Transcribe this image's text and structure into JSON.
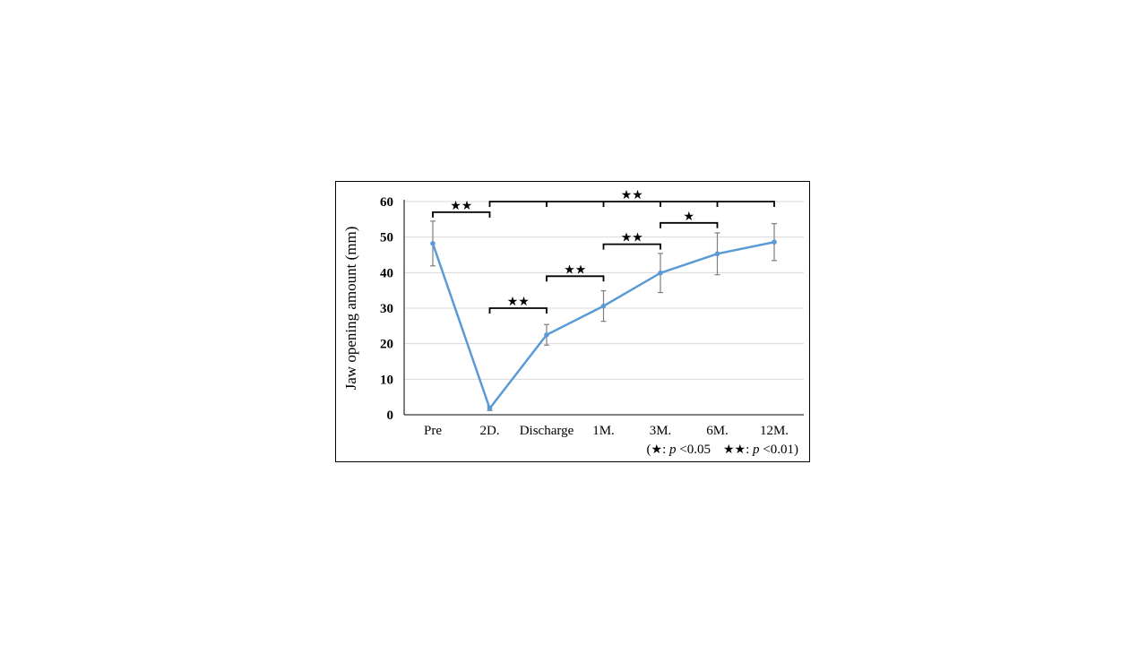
{
  "chart_data": {
    "type": "line",
    "ylabel": "Jaw opening amount (mm)",
    "xlabel": "",
    "ylim": [
      0,
      60
    ],
    "yticks": [
      0,
      10,
      20,
      30,
      40,
      50,
      60
    ],
    "categories": [
      "Pre",
      "2D.",
      "Discharge",
      "1M.",
      "3M.",
      "6M.",
      "12M."
    ],
    "values": [
      48.2,
      1.8,
      22.5,
      30.6,
      39.9,
      45.3,
      48.6
    ],
    "error": [
      6.3,
      0.6,
      2.9,
      4.3,
      5.5,
      5.9,
      5.2
    ],
    "grid": true,
    "color": "#5b9bd5",
    "significance": [
      {
        "from": 0,
        "to": 1,
        "level": 57,
        "stars": "★★"
      },
      {
        "from": 1,
        "to": 6,
        "level": 60,
        "stars": "★★"
      },
      {
        "from": 1,
        "to": 2,
        "level": 30,
        "stars": "★★"
      },
      {
        "from": 2,
        "to": 3,
        "level": 39,
        "stars": "★★"
      },
      {
        "from": 3,
        "to": 4,
        "level": 48,
        "stars": "★★"
      },
      {
        "from": 4,
        "to": 5,
        "level": 54,
        "stars": "★"
      }
    ],
    "significance_ticks": [
      2,
      3,
      4,
      5
    ],
    "legend": {
      "open": "(",
      "one_star": "★",
      "one_star_label": ": ",
      "p": "p",
      "one_star_value": " <0.05",
      "two_star": "★★",
      "two_star_label": ": ",
      "two_star_value": " <0.01)"
    }
  }
}
